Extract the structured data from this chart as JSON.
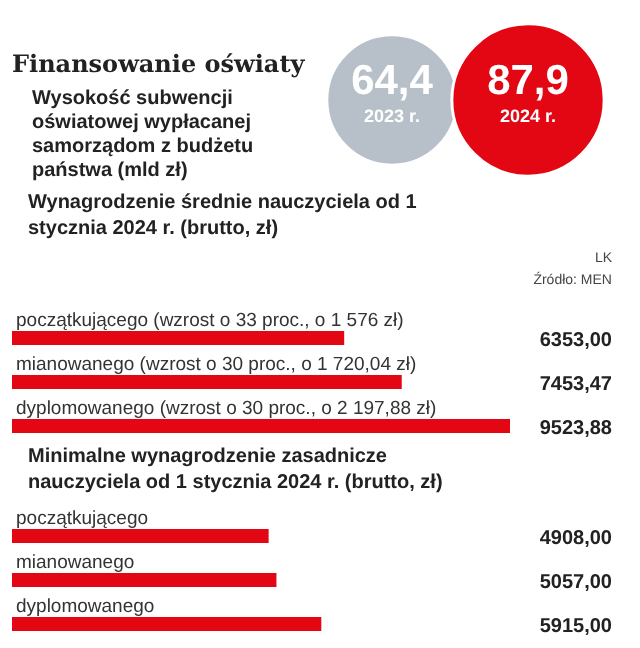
{
  "chart_data": [
    {
      "type": "other",
      "title": "Finansowanie oświaty",
      "subtitle": "Wysokość subwencji oświatowej wypłacanej samorządom z budżetu państwa (mld zł)",
      "categories": [
        "2023 r.",
        "2024 r."
      ],
      "values": [
        64.4,
        87.9
      ],
      "value_labels": [
        "64,4",
        "87,9"
      ],
      "colors": [
        "#b7c0c8",
        "#e30613"
      ]
    },
    {
      "type": "bar",
      "orientation": "horizontal",
      "title": "Wynagrodzenie średnie nauczyciela od 1 stycznia 2024 r. (brutto, zł)",
      "annotations": [
        "LK",
        "Źródło: MEN"
      ],
      "categories": [
        "początkującego (wzrost o 33 proc., o 1 576 zł)",
        "mianowanego (wzrost o 30 proc., o 1 720,04 zł)",
        "dyplomowanego (wzrost o 30 proc., o 2 197,88 zł)"
      ],
      "values": [
        6353.0,
        7453.47,
        9523.88
      ],
      "value_labels": [
        "6353,00",
        "7453,47",
        "9523,88"
      ],
      "color": "#e30613"
    },
    {
      "type": "bar",
      "orientation": "horizontal",
      "title": "Minimalne wynagrodzenie zasadnicze nauczyciela od 1 stycznia 2024 r. (brutto, zł)",
      "categories": [
        "początkującego",
        "mianowanego",
        "dyplomowanego"
      ],
      "values": [
        4908.0,
        5057.0,
        5915.0
      ],
      "value_labels": [
        "4908,00",
        "5057,00",
        "5915,00"
      ],
      "color": "#e30613"
    }
  ]
}
